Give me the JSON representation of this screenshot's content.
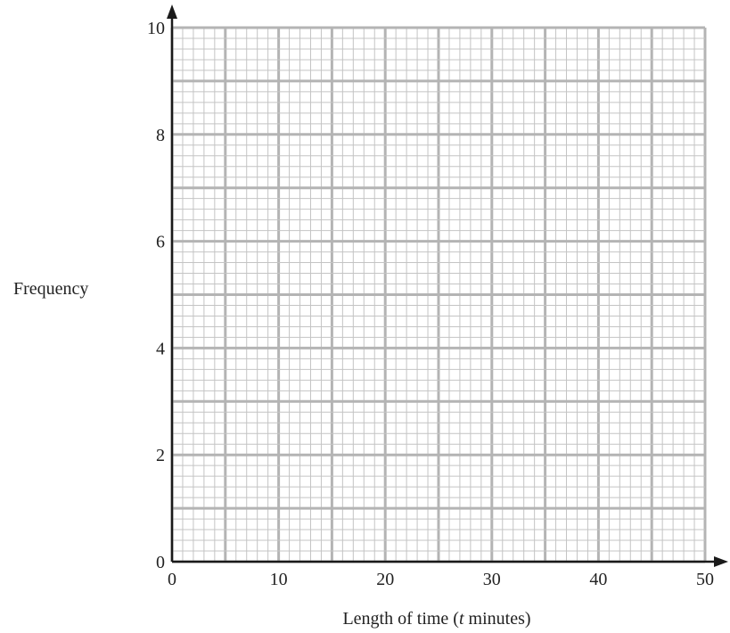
{
  "chart_data": {
    "type": "scatter",
    "title": "",
    "xlabel_parts": [
      "Length of time (",
      "t",
      " minutes)"
    ],
    "ylabel": "Frequency",
    "xlim": [
      0,
      50
    ],
    "ylim": [
      0,
      10
    ],
    "x_ticks": [
      0,
      10,
      20,
      30,
      40,
      50
    ],
    "y_ticks": [
      0,
      2,
      4,
      6,
      8,
      10
    ],
    "grid": "graph paper: minor every 1 x-unit and 0.2 y-units, medium every 5 x-units and 1 y-unit",
    "series": [],
    "colors": {
      "minor_grid": "#c4c4c4",
      "major_grid": "#b4b4b4",
      "axis": "#1a1a1a",
      "text": "#222222"
    }
  }
}
